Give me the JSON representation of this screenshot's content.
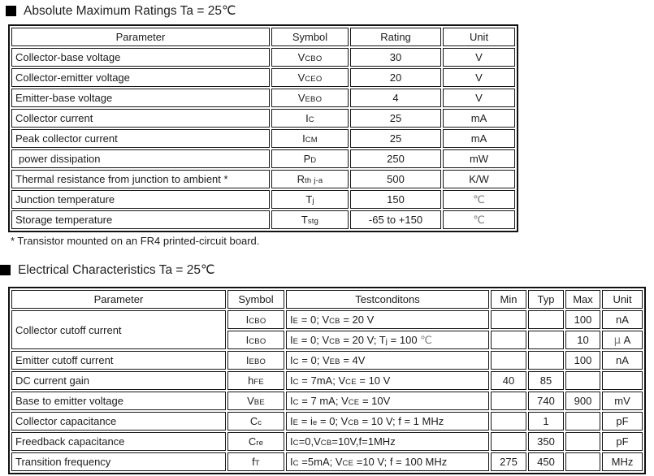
{
  "section1": {
    "title": "Absolute Maximum Ratings Ta = 25℃"
  },
  "section2": {
    "title": "Electrical Characteristics Ta = 25℃"
  },
  "footnote": "* Transistor mounted on an FR4 printed-circuit board.",
  "abs_max_table": {
    "headers": {
      "parameter": "Parameter",
      "symbol": "Symbol",
      "rating": "Rating",
      "unit": "Unit"
    },
    "rows": [
      {
        "parameter": "Collector-base voltage",
        "symbol": [
          [
            "V"
          ],
          [
            "CBO",
            "sub"
          ]
        ],
        "rating": "30",
        "unit": [
          [
            "V"
          ]
        ]
      },
      {
        "parameter": "Collector-emitter voltage",
        "symbol": [
          [
            "V"
          ],
          [
            "CEO",
            "sub"
          ]
        ],
        "rating": "20",
        "unit": [
          [
            "V"
          ]
        ]
      },
      {
        "parameter": "Emitter-base voltage",
        "symbol": [
          [
            "V"
          ],
          [
            "EBO",
            "sub"
          ]
        ],
        "rating": "4",
        "unit": [
          [
            "V"
          ]
        ]
      },
      {
        "parameter": "Collector current",
        "symbol": [
          [
            "I"
          ],
          [
            "C",
            "sub"
          ]
        ],
        "rating": "25",
        "unit": [
          [
            "mA"
          ]
        ]
      },
      {
        "parameter": "Peak collector current",
        "symbol": [
          [
            "I"
          ],
          [
            "CM",
            "sub"
          ]
        ],
        "rating": "25",
        "unit": [
          [
            "mA"
          ]
        ]
      },
      {
        "parameter": "power dissipation",
        "symbol": [
          [
            "P"
          ],
          [
            "D",
            "sub"
          ]
        ],
        "rating": "250",
        "unit": [
          [
            "mW"
          ]
        ]
      },
      {
        "parameter": "Thermal resistance from junction to ambient  *",
        "symbol": [
          [
            "R"
          ],
          [
            "th j-a",
            "sub"
          ]
        ],
        "rating": "500",
        "unit": [
          [
            "K/W"
          ]
        ]
      },
      {
        "parameter": "Junction temperature",
        "symbol": [
          [
            "T"
          ],
          [
            "j",
            "sub"
          ]
        ],
        "rating": "150",
        "unit": [
          [
            "℃",
            "lt"
          ]
        ]
      },
      {
        "parameter": "Storage temperature",
        "symbol": [
          [
            "T"
          ],
          [
            "stg",
            "sub"
          ]
        ],
        "rating": "-65 to +150",
        "unit": [
          [
            "℃",
            "lt"
          ]
        ]
      }
    ]
  },
  "elec_table": {
    "headers": {
      "parameter": "Parameter",
      "symbol": "Symbol",
      "testcond": "Testconditons",
      "min": "Min",
      "typ": "Typ",
      "max": "Max",
      "unit": "Unit"
    },
    "rows": [
      {
        "parameter": "Collector cutoff current",
        "symbol": [
          [
            "I"
          ],
          [
            "CBO",
            "sub"
          ]
        ],
        "cond": [
          [
            "I"
          ],
          [
            "E",
            "sub"
          ],
          [
            " = 0; V"
          ],
          [
            "CB",
            "sub"
          ],
          [
            " = 20 V"
          ]
        ],
        "min": "",
        "typ": "",
        "max": "100",
        "unit": [
          [
            "nA"
          ]
        ]
      },
      {
        "symbol": [
          [
            "I"
          ],
          [
            "CBO",
            "sub"
          ]
        ],
        "cond": [
          [
            "I"
          ],
          [
            "E",
            "sub"
          ],
          [
            " = 0; V"
          ],
          [
            "CB",
            "sub"
          ],
          [
            " = 20 V; T"
          ],
          [
            "j",
            "sub"
          ],
          [
            " = 100 "
          ],
          [
            "℃",
            "lt"
          ]
        ],
        "min": "",
        "typ": "",
        "max": "10",
        "unit": [
          [
            "μ",
            "lt"
          ],
          [
            " A"
          ]
        ]
      },
      {
        "parameter": "Emitter cutoff current",
        "symbol": [
          [
            "I"
          ],
          [
            "EBO",
            "sub"
          ]
        ],
        "cond": [
          [
            "I"
          ],
          [
            "C",
            "sub"
          ],
          [
            " = 0; V"
          ],
          [
            "EB",
            "sub"
          ],
          [
            " = 4V"
          ]
        ],
        "min": "",
        "typ": "",
        "max": "100",
        "unit": [
          [
            "nA"
          ]
        ]
      },
      {
        "parameter": "DC current gain",
        "symbol": [
          [
            "h"
          ],
          [
            "FE",
            "sub"
          ]
        ],
        "cond": [
          [
            "I"
          ],
          [
            "C",
            "sub"
          ],
          [
            " = 7mA; V"
          ],
          [
            "CE",
            "sub"
          ],
          [
            " = 10 V"
          ]
        ],
        "min": "40",
        "typ": "85",
        "max": "",
        "unit": [
          [
            ""
          ]
        ]
      },
      {
        "parameter": "Base to emitter voltage",
        "symbol": [
          [
            "V"
          ],
          [
            "BE",
            "sub"
          ]
        ],
        "cond": [
          [
            "I"
          ],
          [
            "C",
            "sub"
          ],
          [
            " = 7 mA; V"
          ],
          [
            "CE",
            "sub"
          ],
          [
            " = 10V"
          ]
        ],
        "min": "",
        "typ": "740",
        "max": "900",
        "unit": [
          [
            "mV"
          ]
        ]
      },
      {
        "parameter": "Collector capacitance",
        "symbol": [
          [
            "C"
          ],
          [
            "c",
            "sub"
          ]
        ],
        "cond": [
          [
            "I"
          ],
          [
            "E",
            "sub"
          ],
          [
            " = i"
          ],
          [
            "e",
            "sub"
          ],
          [
            " = 0; V"
          ],
          [
            "CB",
            "sub"
          ],
          [
            " = 10 V; f = 1 MHz"
          ]
        ],
        "min": "",
        "typ": "1",
        "max": "",
        "unit": [
          [
            "pF"
          ]
        ]
      },
      {
        "parameter": "Freedback capacitance",
        "symbol": [
          [
            "C"
          ],
          [
            "re",
            "sub"
          ]
        ],
        "cond": [
          [
            "I"
          ],
          [
            "C",
            "sub"
          ],
          [
            "=0,V"
          ],
          [
            "CB",
            "sub"
          ],
          [
            "=10V,f=1MHz"
          ]
        ],
        "min": "",
        "typ": "350",
        "max": "",
        "unit": [
          [
            "pF"
          ]
        ]
      },
      {
        "parameter": "Transition frequency",
        "symbol": [
          [
            "f"
          ],
          [
            "T",
            "sub"
          ]
        ],
        "cond": [
          [
            "I"
          ],
          [
            "C",
            "sub"
          ],
          [
            " =5mA; V"
          ],
          [
            "CE",
            "sub"
          ],
          [
            " =10 V; f = 100 MHz"
          ]
        ],
        "min": "275",
        "typ": "450",
        "max": "",
        "unit": [
          [
            "MHz"
          ]
        ]
      }
    ]
  }
}
